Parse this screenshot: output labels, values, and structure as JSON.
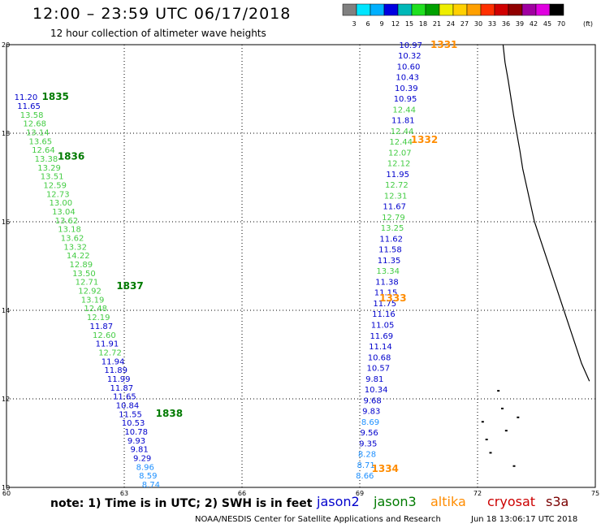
{
  "header": {
    "title": "12:00 – 23:59 UTC 06/17/2018",
    "subtitle": "12 hour collection of altimeter wave heights"
  },
  "colorbar": {
    "unit": "(ft)",
    "ticks": [
      "3",
      "6",
      "9",
      "12",
      "15",
      "18",
      "21",
      "24",
      "27",
      "30",
      "33",
      "36",
      "39",
      "42",
      "45",
      "70"
    ],
    "colors": [
      "#808080",
      "#00e5ff",
      "#00b0ff",
      "#0000e0",
      "#00b8b8",
      "#20e020",
      "#00a000",
      "#eeee00",
      "#ffd000",
      "#ffa000",
      "#ff3000",
      "#d00000",
      "#900000",
      "#a000a0",
      "#e000e0",
      "#000000"
    ]
  },
  "footer": {
    "note": "note: 1) Time is in UTC; 2) SWH is in feet",
    "credit": "NOAA/NESDIS Center for Satellite Applications and Research",
    "timestamp": "Jun 18 13:06:17 UTC 2018"
  },
  "legend": [
    {
      "name": "jason2",
      "color": "#0000cc"
    },
    {
      "name": "jason3",
      "color": "#007a00"
    },
    {
      "name": "altika",
      "color": "#ff8c00"
    },
    {
      "name": "cryosat",
      "color": "#cc0000"
    },
    {
      "name": "s3a",
      "color": "#7a0000"
    }
  ],
  "axes": {
    "lon_ticks": [
      "60",
      "63",
      "66",
      "69",
      "72",
      "75"
    ],
    "lat_ticks": [
      "20",
      "18",
      "16",
      "14",
      "12",
      "10"
    ],
    "lon_range": [
      60,
      75
    ],
    "lat_range": [
      10,
      20
    ],
    "grid": true
  },
  "chart_data": {
    "type": "map",
    "passes": [
      {
        "label": "1331",
        "lon": 70.8,
        "lat": 19.93,
        "color": "#ff8c00"
      },
      {
        "label": "1332",
        "lon": 70.3,
        "lat": 17.78,
        "color": "#ff8c00"
      },
      {
        "label": "1333",
        "lon": 69.5,
        "lat": 14.2,
        "color": "#ff8c00"
      },
      {
        "label": "1334",
        "lon": 69.3,
        "lat": 10.35,
        "color": "#ff8c00"
      },
      {
        "label": "1835",
        "lon": 60.9,
        "lat": 18.75,
        "color": "#007a00"
      },
      {
        "label": "1836",
        "lon": 61.3,
        "lat": 17.4,
        "color": "#007a00"
      },
      {
        "label": "1837",
        "lon": 62.8,
        "lat": 14.48,
        "color": "#007a00"
      },
      {
        "label": "1838",
        "lon": 63.8,
        "lat": 11.6,
        "color": "#007a00"
      }
    ],
    "tracks": [
      {
        "name": "east",
        "lon_start": 70.0,
        "lat_start": 19.93,
        "lon_end": 68.9,
        "lat_end": 10.2,
        "values": [
          "10.97",
          "10.32",
          "10.60",
          "10.43",
          "10.39",
          "10.95",
          "12.44",
          "11.81",
          "12.44",
          "12.44",
          "12.07",
          "12.12",
          "11.95",
          "12.72",
          "12.31",
          "11.67",
          "12.79",
          "13.25",
          "11.62",
          "11.58",
          "11.35",
          "13.34",
          "11.38",
          "11.15",
          "11.75",
          "11.16",
          "11.05",
          "11.69",
          "11.14",
          "10.68",
          "10.57",
          "9.81",
          "10.34",
          "9.68",
          "9.83",
          "8.69",
          "9.56",
          "9.35",
          "8.28",
          "8.71",
          "8.66"
        ],
        "colors": [
          "#0000cc",
          "#0000cc",
          "#0000cc",
          "#0000cc",
          "#0000cc",
          "#0000cc",
          "#44cc44",
          "#0000cc",
          "#44cc44",
          "#44cc44",
          "#44cc44",
          "#44cc44",
          "#0000cc",
          "#44cc44",
          "#44cc44",
          "#0000cc",
          "#44cc44",
          "#44cc44",
          "#0000cc",
          "#0000cc",
          "#0000cc",
          "#44cc44",
          "#0000cc",
          "#0000cc",
          "#0000cc",
          "#0000cc",
          "#0000cc",
          "#0000cc",
          "#0000cc",
          "#0000cc",
          "#0000cc",
          "#0000cc",
          "#0000cc",
          "#0000cc",
          "#0000cc",
          "#1e90ff",
          "#0000cc",
          "#0000cc",
          "#1e90ff",
          "#1e90ff",
          "#1e90ff"
        ]
      },
      {
        "name": "west",
        "lon_start": 60.2,
        "lat_start": 18.75,
        "lon_end": 63.45,
        "lat_end": 10.0,
        "values": [
          "11.20",
          "11.65",
          "13.58",
          "12.68",
          "13.14",
          "13.65",
          "12.64",
          "13.38",
          "13.29",
          "13.51",
          "12.59",
          "12.73",
          "13.00",
          "13.04",
          "13.62",
          "13.18",
          "13.62",
          "13.32",
          "14.22",
          "12.89",
          "13.50",
          "12.71",
          "12.92",
          "13.19",
          "12.48",
          "12.19",
          "11.87",
          "12.60",
          "11.91",
          "12.72",
          "11.94",
          "11.89",
          "11.99",
          "11.87",
          "11.65",
          "10.84",
          "11.55",
          "10.53",
          "10.78",
          "9.93",
          "9.81",
          "9.29",
          "8.96",
          "8.59",
          "8.74"
        ],
        "colors": [
          "#0000cc",
          "#0000cc",
          "#44cc44",
          "#44cc44",
          "#44cc44",
          "#44cc44",
          "#44cc44",
          "#44cc44",
          "#44cc44",
          "#44cc44",
          "#44cc44",
          "#44cc44",
          "#44cc44",
          "#44cc44",
          "#44cc44",
          "#44cc44",
          "#44cc44",
          "#44cc44",
          "#44cc44",
          "#44cc44",
          "#44cc44",
          "#44cc44",
          "#44cc44",
          "#44cc44",
          "#44cc44",
          "#44cc44",
          "#0000cc",
          "#44cc44",
          "#0000cc",
          "#44cc44",
          "#0000cc",
          "#0000cc",
          "#0000cc",
          "#0000cc",
          "#0000cc",
          "#0000cc",
          "#0000cc",
          "#0000cc",
          "#0000cc",
          "#0000cc",
          "#0000cc",
          "#0000cc",
          "#1e90ff",
          "#1e90ff",
          "#1e90ff"
        ]
      }
    ],
    "coastline": [
      [
        72.65,
        20.0
      ],
      [
        72.7,
        19.6
      ],
      [
        72.78,
        19.2
      ],
      [
        72.85,
        18.8
      ],
      [
        72.92,
        18.4
      ],
      [
        73.0,
        18.0
      ],
      [
        73.08,
        17.6
      ],
      [
        73.15,
        17.2
      ],
      [
        73.25,
        16.8
      ],
      [
        73.35,
        16.4
      ],
      [
        73.45,
        16.0
      ],
      [
        73.6,
        15.6
      ],
      [
        73.75,
        15.2
      ],
      [
        73.9,
        14.8
      ],
      [
        74.05,
        14.4
      ],
      [
        74.2,
        14.0
      ],
      [
        74.35,
        13.6
      ],
      [
        74.5,
        13.2
      ],
      [
        74.65,
        12.8
      ],
      [
        74.85,
        12.4
      ]
    ],
    "islands": [
      [
        72.2,
        11.1
      ],
      [
        72.7,
        11.3
      ],
      [
        72.9,
        10.5
      ],
      [
        72.3,
        10.8
      ],
      [
        72.5,
        12.2
      ],
      [
        72.6,
        11.8
      ],
      [
        73.0,
        11.6
      ],
      [
        72.1,
        11.5
      ]
    ]
  }
}
